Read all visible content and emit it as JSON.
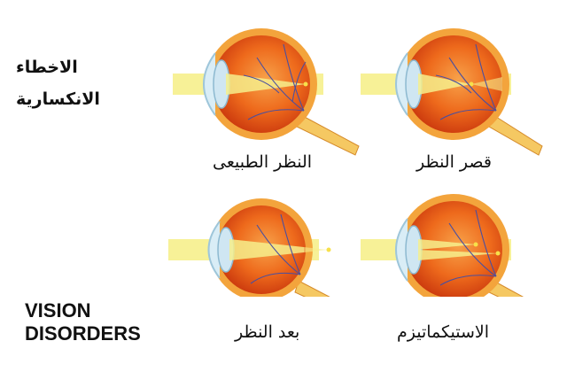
{
  "title_arabic": [
    "الاخطاء",
    "الانكسارية"
  ],
  "title_english": [
    "VISION",
    "DISORDERS"
  ],
  "panels": [
    {
      "id": "normal",
      "label": "النظر الطبيعى"
    },
    {
      "id": "myopia",
      "label": "قصر النظر"
    },
    {
      "id": "hyperopia",
      "label": "بعد النظر"
    },
    {
      "id": "astigmatism",
      "label": "الاستيكماتيزم"
    }
  ],
  "colors": {
    "beam": "#f6ef8c",
    "eye_outer": "#f0a03a",
    "eye_inner": "#e85a12",
    "sclera_back": "#c93a0e",
    "lens": "#cfe6f2",
    "optic_nerve": "#f5c862",
    "vessels": "#4a4fa0"
  }
}
